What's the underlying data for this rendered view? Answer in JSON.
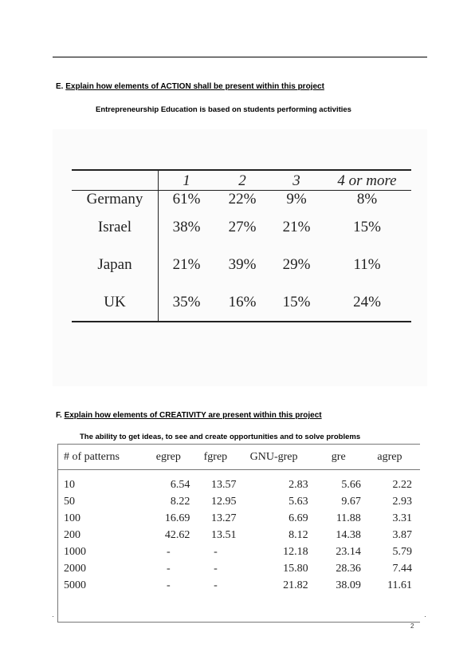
{
  "section_e": {
    "letter": "E.",
    "heading": "Explain how elements of ACTION shall be present within this project",
    "subline": "Entrepreneurship Education is based on students performing activities"
  },
  "table1": {
    "columns": [
      "1",
      "2",
      "3",
      "4 or more"
    ],
    "rows": [
      {
        "label": "Germany",
        "cells": [
          "61%",
          "22%",
          "9%",
          "8%"
        ]
      },
      {
        "label": "Israel",
        "cells": [
          "38%",
          "27%",
          "21%",
          "15%"
        ]
      },
      {
        "label": "Japan",
        "cells": [
          "21%",
          "39%",
          "29%",
          "11%"
        ]
      },
      {
        "label": "UK",
        "cells": [
          "35%",
          "16%",
          "15%",
          "24%"
        ]
      }
    ]
  },
  "section_f": {
    "letter": "F.",
    "heading": "Explain how elements of CREATIVITY are present within this project",
    "subline": "The ability to get ideas, to see and create opportunities and to solve problems"
  },
  "table2": {
    "columns": [
      "# of patterns",
      "egrep",
      "fgrep",
      "GNU-grep",
      "gre",
      "agrep"
    ],
    "rows": [
      [
        "10",
        "6.54",
        "13.57",
        "2.83",
        "5.66",
        "2.22"
      ],
      [
        "50",
        "8.22",
        "12.95",
        "5.63",
        "9.67",
        "2.93"
      ],
      [
        "100",
        "16.69",
        "13.27",
        "6.69",
        "11.88",
        "3.31"
      ],
      [
        "200",
        "42.62",
        "13.51",
        "8.12",
        "14.38",
        "3.87"
      ],
      [
        "1000",
        "-",
        "-",
        "12.18",
        "23.14",
        "5.79"
      ],
      [
        "2000",
        "-",
        "-",
        "15.80",
        "28.36",
        "7.44"
      ],
      [
        "5000",
        "-",
        "-",
        "21.82",
        "38.09",
        "11.61"
      ]
    ]
  },
  "page_number": "2"
}
